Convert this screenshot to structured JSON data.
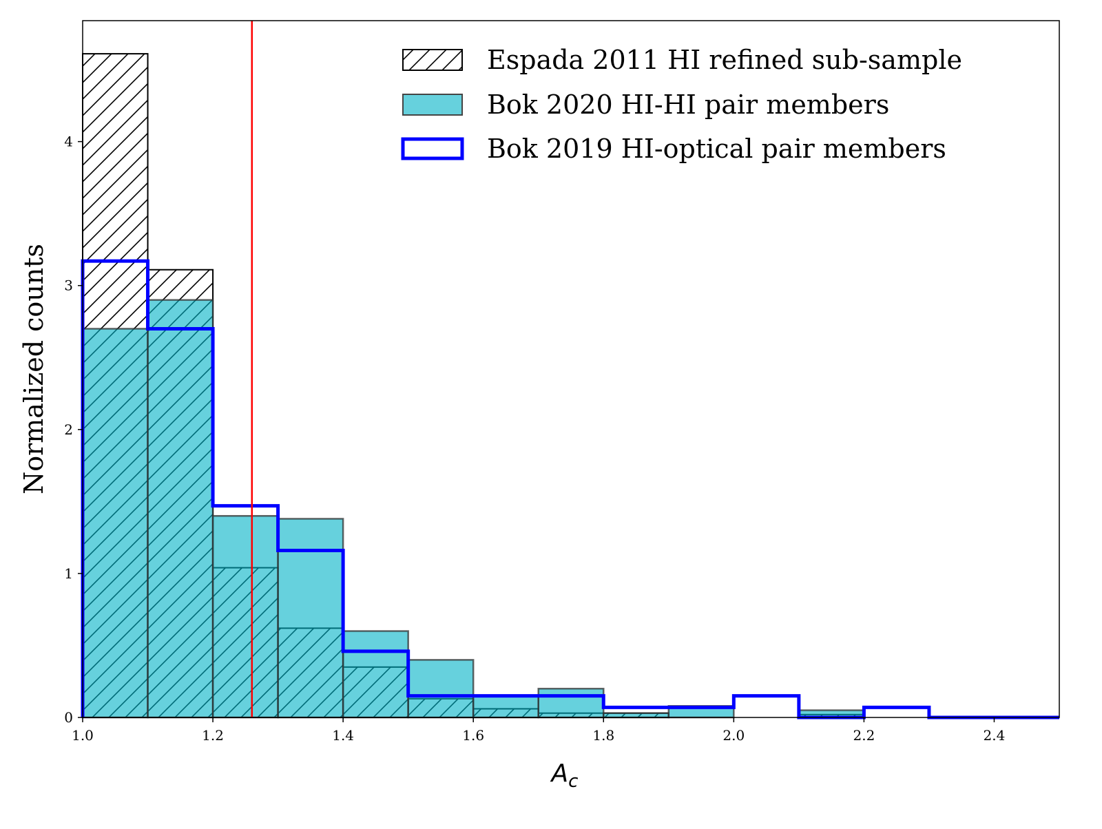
{
  "chart_data": {
    "type": "bar",
    "title": "",
    "xlabel": "A_c",
    "xlabel_main": "A",
    "xlabel_sub": "c",
    "ylabel": "Normalized counts",
    "xlim": [
      1.0,
      2.5
    ],
    "ylim": [
      0,
      4.84
    ],
    "xticks": [
      "1.0",
      "1.2",
      "1.4",
      "1.6",
      "1.8",
      "2.0",
      "2.2",
      "2.4"
    ],
    "yticks": [
      "0",
      "1",
      "2",
      "3",
      "4"
    ],
    "bin_edges": [
      1.0,
      1.1,
      1.2,
      1.3,
      1.4,
      1.5,
      1.6,
      1.7,
      1.8,
      1.9,
      2.0,
      2.1,
      2.2,
      2.3,
      2.4,
      2.5
    ],
    "vline": {
      "x": 1.26,
      "color": "#ff0000"
    },
    "legend_position": "top-right",
    "series": [
      {
        "name": "Espada 2011 HI refined sub-sample",
        "style": "hatched",
        "values": [
          4.61,
          3.11,
          1.04,
          0.62,
          0.35,
          0.13,
          0.06,
          0.03,
          0.03,
          0,
          0,
          0.02,
          0,
          0,
          0
        ]
      },
      {
        "name": "Bok 2020 HI-HI pair members",
        "style": "filled",
        "color": "#00b2c6",
        "values": [
          2.7,
          2.9,
          1.4,
          1.38,
          0.6,
          0.4,
          0.15,
          0.2,
          0.03,
          0.08,
          0,
          0.05,
          0,
          0,
          0
        ]
      },
      {
        "name": "Bok 2019 HI-optical pair members",
        "style": "step",
        "color": "#0000ff",
        "values": [
          3.17,
          2.7,
          1.47,
          1.16,
          0.46,
          0.15,
          0.15,
          0.15,
          0.07,
          0.07,
          0.15,
          0,
          0.07,
          0,
          0
        ]
      }
    ]
  }
}
